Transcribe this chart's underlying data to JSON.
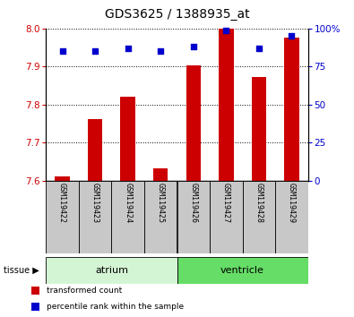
{
  "title": "GDS3625 / 1388935_at",
  "samples": [
    "GSM119422",
    "GSM119423",
    "GSM119424",
    "GSM119425",
    "GSM119426",
    "GSM119427",
    "GSM119428",
    "GSM119429"
  ],
  "red_values": [
    7.612,
    7.762,
    7.82,
    7.632,
    7.902,
    8.0,
    7.872,
    7.975
  ],
  "blue_percentiles": [
    85,
    85,
    87,
    85,
    88,
    99,
    87,
    95
  ],
  "ymin": 7.6,
  "ymax": 8.0,
  "yticks": [
    7.6,
    7.7,
    7.8,
    7.9,
    8
  ],
  "right_yticks": [
    0,
    25,
    50,
    75,
    100
  ],
  "right_yticklabels": [
    "0",
    "25",
    "50",
    "75",
    "100%"
  ],
  "tissues": [
    {
      "label": "atrium",
      "start": 0,
      "end": 4,
      "color": "#d4f5d4"
    },
    {
      "label": "ventricle",
      "start": 4,
      "end": 8,
      "color": "#66dd66"
    }
  ],
  "tissue_label": "tissue",
  "bar_color": "#cc0000",
  "dot_color": "#0000cc",
  "tick_color_left": "#cc0000",
  "tick_color_right": "#0000cc",
  "legend_items": [
    {
      "color": "#cc0000",
      "label": "transformed count"
    },
    {
      "color": "#0000cc",
      "label": "percentile rank within the sample"
    }
  ],
  "bar_bottom": 7.6,
  "grid_color": "black",
  "bg_color": "white",
  "plot_bg": "white",
  "sample_box_color": "#c8c8c8",
  "bar_width": 0.45
}
